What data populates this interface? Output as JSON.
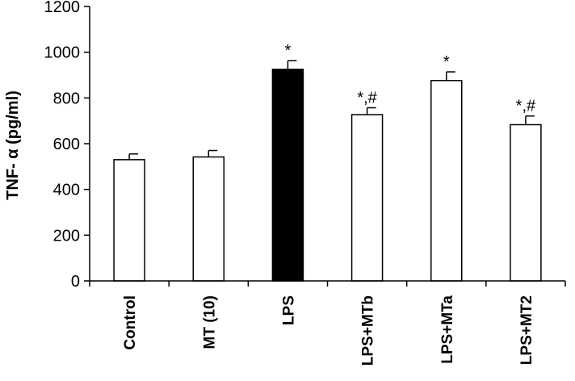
{
  "chart_data": {
    "type": "bar",
    "title": "",
    "xlabel": "",
    "ylabel": "TNF- α (pg/ml)",
    "ylim": [
      0,
      1200
    ],
    "yticks": [
      0,
      200,
      400,
      600,
      800,
      1000,
      1200
    ],
    "grid": false,
    "categories": [
      "Control",
      "MT (10)",
      "LPS",
      "LPS+MTb",
      "LPS+MTa",
      "LPS+MT2"
    ],
    "values": [
      530,
      542,
      925,
      727,
      876,
      683
    ],
    "errors": [
      25,
      28,
      38,
      30,
      38,
      38
    ],
    "fills": [
      "#ffffff",
      "#ffffff",
      "#000000",
      "#ffffff",
      "#ffffff",
      "#ffffff"
    ],
    "annotations": [
      "",
      "",
      "*",
      "*,#",
      "*",
      "*,#"
    ]
  }
}
